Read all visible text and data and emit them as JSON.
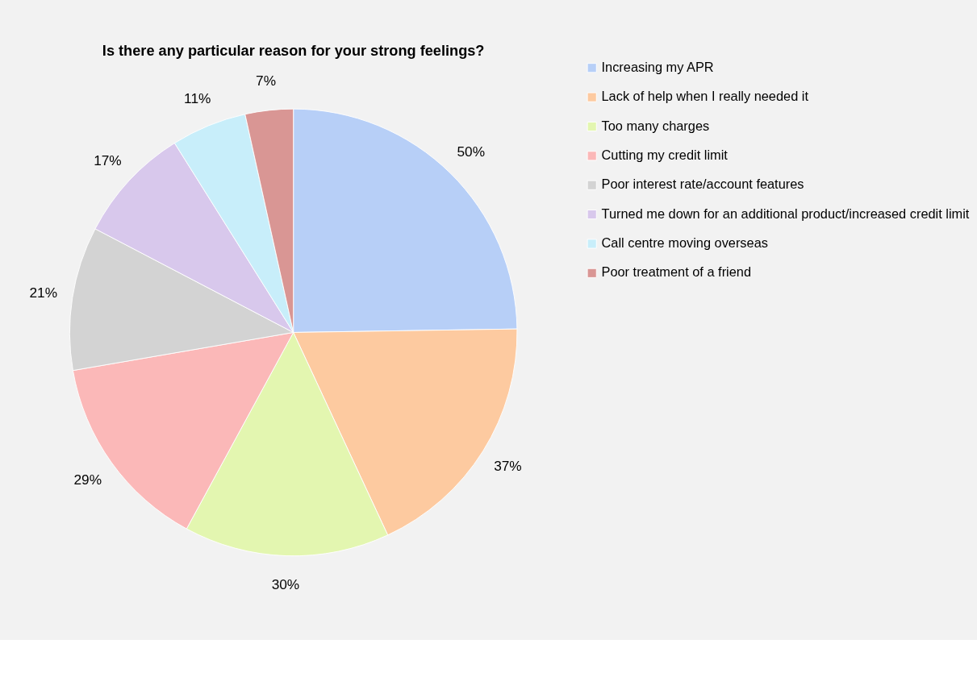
{
  "chart_data": {
    "type": "pie",
    "title": "Is there any particular reason for your strong feelings?",
    "categories": [
      "Increasing my APR",
      "Lack of help when I really needed it",
      "Too many charges",
      "Cutting my credit limit",
      "Poor interest rate/account features",
      "Turned me down for an additional product/increased credit limit",
      "Call centre moving overseas",
      "Poor treatment of a friend"
    ],
    "values": [
      50,
      37,
      30,
      29,
      21,
      17,
      11,
      7
    ],
    "value_labels": [
      "50%",
      "37%",
      "30%",
      "29%",
      "21%",
      "17%",
      "11%",
      "7%"
    ],
    "colors": [
      "#b7cff7",
      "#fdcaa0",
      "#e3f6b0",
      "#fbb8b8",
      "#d3d3d3",
      "#d8c8ec",
      "#c8eefa",
      "#d99694"
    ],
    "legend": "right"
  }
}
